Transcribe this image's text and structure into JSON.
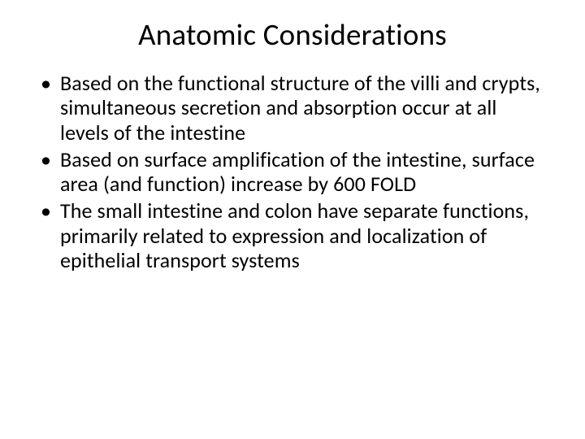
{
  "slide": {
    "title": "Anatomic Considerations",
    "bullets": [
      "Based on the functional structure of the villi and crypts, simultaneous secretion and absorption occur at all levels of the intestine",
      "Based on surface amplification of the intestine, surface area (and function) increase by 600 FOLD",
      "The small intestine and colon have separate functions, primarily related to expression and localization of epithelial transport systems"
    ]
  },
  "style": {
    "background_color": "#ffffff",
    "text_color": "#000000",
    "title_fontsize": 37,
    "body_fontsize": 26,
    "font_family": "Calibri"
  }
}
